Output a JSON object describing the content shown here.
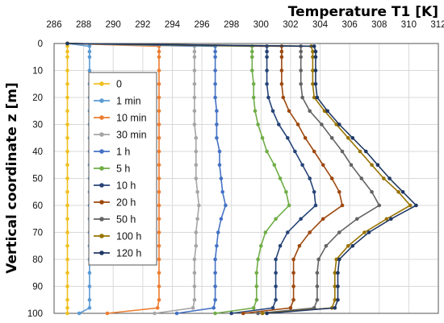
{
  "chart_data": {
    "type": "line",
    "title": "Temperature T1 [K]",
    "xlabel": "Temperature T1 [K]",
    "ylabel": "Vertical coordinate z [m]",
    "xlim": [
      286,
      312
    ],
    "ylim": [
      100,
      0
    ],
    "y_inverted": true,
    "x_axis_position": "top",
    "grid": true,
    "legend_position": "left",
    "x_ticks": [
      "286",
      "288",
      "290",
      "292",
      "294",
      "296",
      "298",
      "300",
      "302",
      "304",
      "306",
      "308",
      "310",
      "312"
    ],
    "y_ticks": [
      "0",
      "10",
      "20",
      "30",
      "40",
      "50",
      "60",
      "70",
      "80",
      "90",
      "100"
    ],
    "y": [
      0,
      1,
      3,
      5,
      10,
      15,
      20,
      25,
      30,
      35,
      40,
      45,
      50,
      55,
      60,
      65,
      70,
      75,
      80,
      85,
      90,
      95,
      98,
      100
    ],
    "series": [
      {
        "name": "0",
        "color": "#f0c020",
        "values": [
          286.9,
          286.9,
          286.9,
          286.9,
          286.9,
          286.9,
          286.9,
          286.9,
          286.9,
          286.9,
          286.9,
          286.9,
          286.9,
          286.9,
          286.9,
          286.9,
          286.9,
          286.9,
          286.9,
          286.9,
          286.9,
          286.9,
          286.9,
          286.9
        ]
      },
      {
        "name": "1 min",
        "color": "#5b9bd5",
        "values": [
          286.9,
          288.4,
          288.4,
          288.4,
          288.4,
          288.4,
          288.4,
          288.4,
          288.4,
          288.4,
          288.4,
          288.4,
          288.4,
          288.4,
          288.4,
          288.4,
          288.4,
          288.4,
          288.4,
          288.4,
          288.4,
          288.4,
          288.4,
          287.7
        ]
      },
      {
        "name": "10 min",
        "color": "#ed7d31",
        "values": [
          286.9,
          293.1,
          293.1,
          293.1,
          293.1,
          293.1,
          293.1,
          293.1,
          293.1,
          293.1,
          293.1,
          293.1,
          293.1,
          293.1,
          293.1,
          293.1,
          293.1,
          293.1,
          293.1,
          293.1,
          293.1,
          293.1,
          293.0,
          289.6
        ]
      },
      {
        "name": "30 min",
        "color": "#a5a5a5",
        "values": [
          286.9,
          295.5,
          295.5,
          295.5,
          295.5,
          295.5,
          295.5,
          295.5,
          295.5,
          295.6,
          295.6,
          295.6,
          295.6,
          295.7,
          295.8,
          295.7,
          295.6,
          295.6,
          295.5,
          295.5,
          295.5,
          295.5,
          295.4,
          292.8
        ]
      },
      {
        "name": "1 h",
        "color": "#4472c4",
        "values": [
          286.9,
          296.9,
          296.9,
          296.9,
          296.9,
          296.9,
          296.9,
          297.0,
          297.0,
          297.0,
          297.2,
          297.2,
          297.3,
          297.4,
          297.6,
          297.3,
          297.1,
          297.0,
          296.9,
          296.9,
          296.9,
          296.9,
          296.8,
          294.3
        ]
      },
      {
        "name": "5 h",
        "color": "#70ad47",
        "values": [
          286.9,
          299.4,
          299.4,
          299.4,
          299.4,
          299.5,
          299.5,
          299.6,
          299.8,
          300.1,
          300.4,
          300.9,
          301.3,
          301.7,
          301.9,
          301.0,
          300.3,
          300.0,
          299.8,
          299.7,
          299.7,
          299.7,
          299.5,
          296.9
        ]
      },
      {
        "name": "10 h",
        "color": "#264478",
        "values": [
          286.9,
          300.4,
          300.4,
          300.4,
          300.4,
          300.4,
          300.5,
          300.8,
          301.2,
          301.8,
          302.3,
          302.8,
          303.3,
          303.6,
          303.7,
          302.7,
          301.8,
          301.3,
          301.0,
          301.0,
          301.0,
          301.0,
          300.8,
          298.0
        ]
      },
      {
        "name": "20 h",
        "color": "#9e480e",
        "values": [
          286.9,
          301.4,
          301.4,
          301.4,
          301.4,
          301.4,
          301.5,
          301.9,
          302.5,
          303.0,
          303.6,
          304.2,
          304.8,
          305.3,
          305.5,
          304.2,
          303.3,
          302.6,
          302.2,
          302.2,
          302.2,
          302.2,
          302.0,
          298.8
        ]
      },
      {
        "name": "50 h",
        "color": "#636363",
        "values": [
          286.9,
          302.7,
          302.7,
          302.7,
          302.7,
          302.7,
          302.8,
          303.3,
          304.1,
          304.8,
          305.5,
          306.1,
          306.8,
          307.5,
          308.0,
          306.5,
          305.3,
          304.4,
          303.9,
          303.8,
          303.8,
          303.8,
          303.6,
          299.8
        ]
      },
      {
        "name": "100 h",
        "color": "#997300",
        "values": [
          286.9,
          303.4,
          303.5,
          303.5,
          303.5,
          303.5,
          303.6,
          304.3,
          305.1,
          305.9,
          306.7,
          307.5,
          308.3,
          309.3,
          310.1,
          308.5,
          307.0,
          305.9,
          305.1,
          305.0,
          305.0,
          305.0,
          304.8,
          300.1
        ]
      },
      {
        "name": "120 h",
        "color": "#1f3864",
        "values": [
          286.9,
          303.6,
          303.7,
          303.7,
          303.7,
          303.7,
          303.8,
          304.5,
          305.3,
          306.2,
          307.1,
          307.9,
          308.7,
          309.6,
          310.5,
          308.8,
          307.3,
          306.2,
          305.3,
          305.2,
          305.2,
          305.2,
          305.0,
          300.4
        ]
      }
    ]
  }
}
